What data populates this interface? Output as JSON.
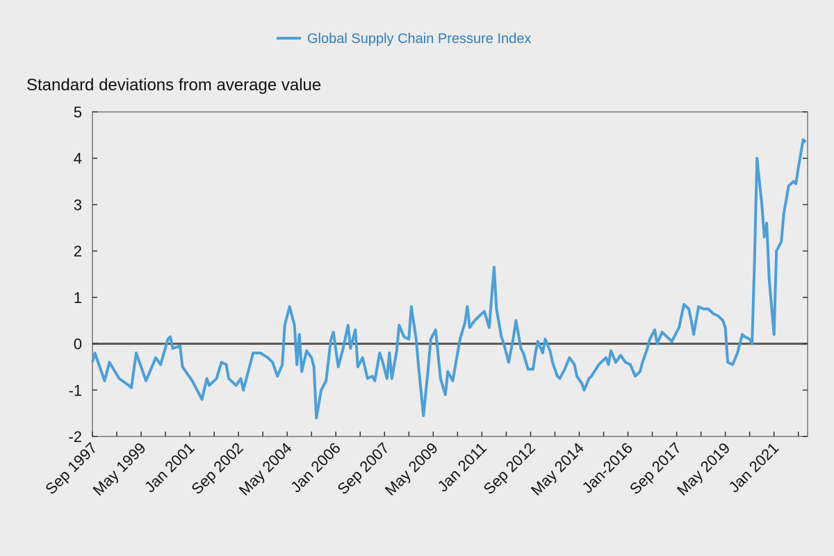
{
  "chart_data": {
    "type": "line",
    "title": "",
    "ylabel": "Standard deviations from average value",
    "xlabel": "",
    "legend": {
      "position": "top-center",
      "entries": [
        "Global Supply Chain Pressure Index"
      ]
    },
    "ylim": [
      -2,
      5
    ],
    "yticks": [
      "5",
      "4",
      "3",
      "2",
      "1",
      "0",
      "-1",
      "-2"
    ],
    "xlim": [
      "1997-09",
      "2022-03"
    ],
    "xtick_interval_months": 10,
    "xtick_labels": [
      "Sep 1997",
      "May 1999",
      "Jan 2001",
      "Sep 2002",
      "May 2004",
      "Jan 2006",
      "Sep 2007",
      "May 2009",
      "Jan 2011",
      "Sep 2012",
      "May 2014",
      "Jan-2016",
      "Sep 2017",
      "May 2019",
      "Jan 2021"
    ],
    "grid": false,
    "reference_line": 0,
    "colors": {
      "series": "#4e9fd5",
      "legend_text": "#2f7fb8",
      "zero_line": "#555555",
      "frame": "#777777",
      "background": "#ececec"
    },
    "series": [
      {
        "name": "Global Supply Chain Pressure Index",
        "points": [
          [
            "1997-09",
            -0.4
          ],
          [
            "1997-10",
            -0.2
          ],
          [
            "1998-02",
            -0.8
          ],
          [
            "1998-04",
            -0.4
          ],
          [
            "1998-08",
            -0.75
          ],
          [
            "1998-12",
            -0.9
          ],
          [
            "1999-01",
            -0.95
          ],
          [
            "1999-03",
            -0.2
          ],
          [
            "1999-07",
            -0.8
          ],
          [
            "1999-11",
            -0.3
          ],
          [
            "2000-01",
            -0.45
          ],
          [
            "2000-04",
            0.1
          ],
          [
            "2000-05",
            0.15
          ],
          [
            "2000-06",
            -0.1
          ],
          [
            "2000-09",
            -0.05
          ],
          [
            "2000-10",
            -0.5
          ],
          [
            "2001-02",
            -0.8
          ],
          [
            "2001-04",
            -1.0
          ],
          [
            "2001-06",
            -1.2
          ],
          [
            "2001-08",
            -0.75
          ],
          [
            "2001-09",
            -0.9
          ],
          [
            "2001-12",
            -0.75
          ],
          [
            "2002-02",
            -0.4
          ],
          [
            "2002-04",
            -0.45
          ],
          [
            "2002-05",
            -0.75
          ],
          [
            "2002-08",
            -0.9
          ],
          [
            "2002-10",
            -0.75
          ],
          [
            "2002-11",
            -1.0
          ],
          [
            "2003-01",
            -0.6
          ],
          [
            "2003-03",
            -0.2
          ],
          [
            "2003-06",
            -0.2
          ],
          [
            "2003-09",
            -0.3
          ],
          [
            "2003-11",
            -0.4
          ],
          [
            "2004-01",
            -0.7
          ],
          [
            "2004-03",
            -0.45
          ],
          [
            "2004-04",
            0.4
          ],
          [
            "2004-06",
            0.8
          ],
          [
            "2004-08",
            0.4
          ],
          [
            "2004-09",
            -0.45
          ],
          [
            "2004-10",
            0.2
          ],
          [
            "2004-11",
            -0.6
          ],
          [
            "2005-01",
            -0.15
          ],
          [
            "2005-03",
            -0.3
          ],
          [
            "2005-04",
            -0.5
          ],
          [
            "2005-05",
            -1.6
          ],
          [
            "2005-07",
            -1.0
          ],
          [
            "2005-09",
            -0.8
          ],
          [
            "2005-11",
            0.1
          ],
          [
            "2005-12",
            0.25
          ],
          [
            "2006-02",
            -0.5
          ],
          [
            "2006-04",
            -0.1
          ],
          [
            "2006-06",
            0.4
          ],
          [
            "2006-07",
            -0.1
          ],
          [
            "2006-09",
            0.3
          ],
          [
            "2006-10",
            -0.5
          ],
          [
            "2006-12",
            -0.3
          ],
          [
            "2007-02",
            -0.75
          ],
          [
            "2007-04",
            -0.7
          ],
          [
            "2007-05",
            -0.8
          ],
          [
            "2007-07",
            -0.2
          ],
          [
            "2007-08",
            -0.35
          ],
          [
            "2007-10",
            -0.75
          ],
          [
            "2007-11",
            -0.2
          ],
          [
            "2007-12",
            -0.75
          ],
          [
            "2008-02",
            -0.15
          ],
          [
            "2008-03",
            0.4
          ],
          [
            "2008-05",
            0.15
          ],
          [
            "2008-07",
            0.1
          ],
          [
            "2008-08",
            0.8
          ],
          [
            "2008-10",
            0.1
          ],
          [
            "2008-11",
            -0.5
          ],
          [
            "2009-01",
            -1.55
          ],
          [
            "2009-03",
            -0.5
          ],
          [
            "2009-04",
            0.1
          ],
          [
            "2009-06",
            0.3
          ],
          [
            "2009-08",
            -0.75
          ],
          [
            "2009-10",
            -1.1
          ],
          [
            "2009-11",
            -0.6
          ],
          [
            "2010-01",
            -0.8
          ],
          [
            "2010-04",
            0.1
          ],
          [
            "2010-06",
            0.45
          ],
          [
            "2010-07",
            0.8
          ],
          [
            "2010-08",
            0.35
          ],
          [
            "2010-10",
            0.5
          ],
          [
            "2010-12",
            0.6
          ],
          [
            "2011-02",
            0.7
          ],
          [
            "2011-04",
            0.35
          ],
          [
            "2011-06",
            1.65
          ],
          [
            "2011-07",
            0.75
          ],
          [
            "2011-09",
            0.15
          ],
          [
            "2011-10",
            0.0
          ],
          [
            "2011-12",
            -0.4
          ],
          [
            "2012-02",
            0.15
          ],
          [
            "2012-03",
            0.5
          ],
          [
            "2012-05",
            -0.1
          ],
          [
            "2012-06",
            -0.2
          ],
          [
            "2012-08",
            -0.55
          ],
          [
            "2012-10",
            -0.55
          ],
          [
            "2012-11",
            -0.2
          ],
          [
            "2012-12",
            0.05
          ],
          [
            "2013-02",
            -0.2
          ],
          [
            "2013-03",
            0.1
          ],
          [
            "2013-05",
            -0.15
          ],
          [
            "2013-06",
            -0.4
          ],
          [
            "2013-08",
            -0.7
          ],
          [
            "2013-09",
            -0.75
          ],
          [
            "2013-11",
            -0.55
          ],
          [
            "2014-01",
            -0.3
          ],
          [
            "2014-03",
            -0.45
          ],
          [
            "2014-04",
            -0.7
          ],
          [
            "2014-06",
            -0.85
          ],
          [
            "2014-07",
            -1.0
          ],
          [
            "2014-09",
            -0.75
          ],
          [
            "2014-10",
            -0.7
          ],
          [
            "2015-01",
            -0.45
          ],
          [
            "2015-04",
            -0.3
          ],
          [
            "2015-05",
            -0.45
          ],
          [
            "2015-06",
            -0.15
          ],
          [
            "2015-08",
            -0.4
          ],
          [
            "2015-10",
            -0.25
          ],
          [
            "2015-12",
            -0.4
          ],
          [
            "2016-02",
            -0.45
          ],
          [
            "2016-04",
            -0.7
          ],
          [
            "2016-06",
            -0.6
          ],
          [
            "2016-07",
            -0.4
          ],
          [
            "2016-09",
            -0.1
          ],
          [
            "2016-10",
            0.1
          ],
          [
            "2016-12",
            0.3
          ],
          [
            "2017-01",
            0.0
          ],
          [
            "2017-03",
            0.25
          ],
          [
            "2017-05",
            0.15
          ],
          [
            "2017-07",
            0.05
          ],
          [
            "2017-10",
            0.35
          ],
          [
            "2017-12",
            0.85
          ],
          [
            "2018-02",
            0.75
          ],
          [
            "2018-03",
            0.5
          ],
          [
            "2018-04",
            0.2
          ],
          [
            "2018-06",
            0.8
          ],
          [
            "2018-08",
            0.75
          ],
          [
            "2018-10",
            0.75
          ],
          [
            "2018-12",
            0.65
          ],
          [
            "2019-02",
            0.6
          ],
          [
            "2019-04",
            0.5
          ],
          [
            "2019-05",
            0.35
          ],
          [
            "2019-06",
            -0.4
          ],
          [
            "2019-08",
            -0.45
          ],
          [
            "2019-10",
            -0.2
          ],
          [
            "2019-12",
            0.2
          ],
          [
            "2020-01",
            0.15
          ],
          [
            "2020-03",
            0.1
          ],
          [
            "2020-04",
            0.0
          ],
          [
            "2020-05",
            1.75
          ],
          [
            "2020-06",
            4.0
          ],
          [
            "2020-08",
            3.0
          ],
          [
            "2020-09",
            2.3
          ],
          [
            "2020-10",
            2.6
          ],
          [
            "2020-11",
            1.4
          ],
          [
            "2021-01",
            0.2
          ],
          [
            "2021-02",
            2.0
          ],
          [
            "2021-04",
            2.2
          ],
          [
            "2021-05",
            2.8
          ],
          [
            "2021-07",
            3.4
          ],
          [
            "2021-09",
            3.5
          ],
          [
            "2021-10",
            3.45
          ],
          [
            "2021-11",
            3.8
          ],
          [
            "2022-01",
            4.4
          ],
          [
            "2022-02",
            4.35
          ]
        ]
      }
    ]
  }
}
